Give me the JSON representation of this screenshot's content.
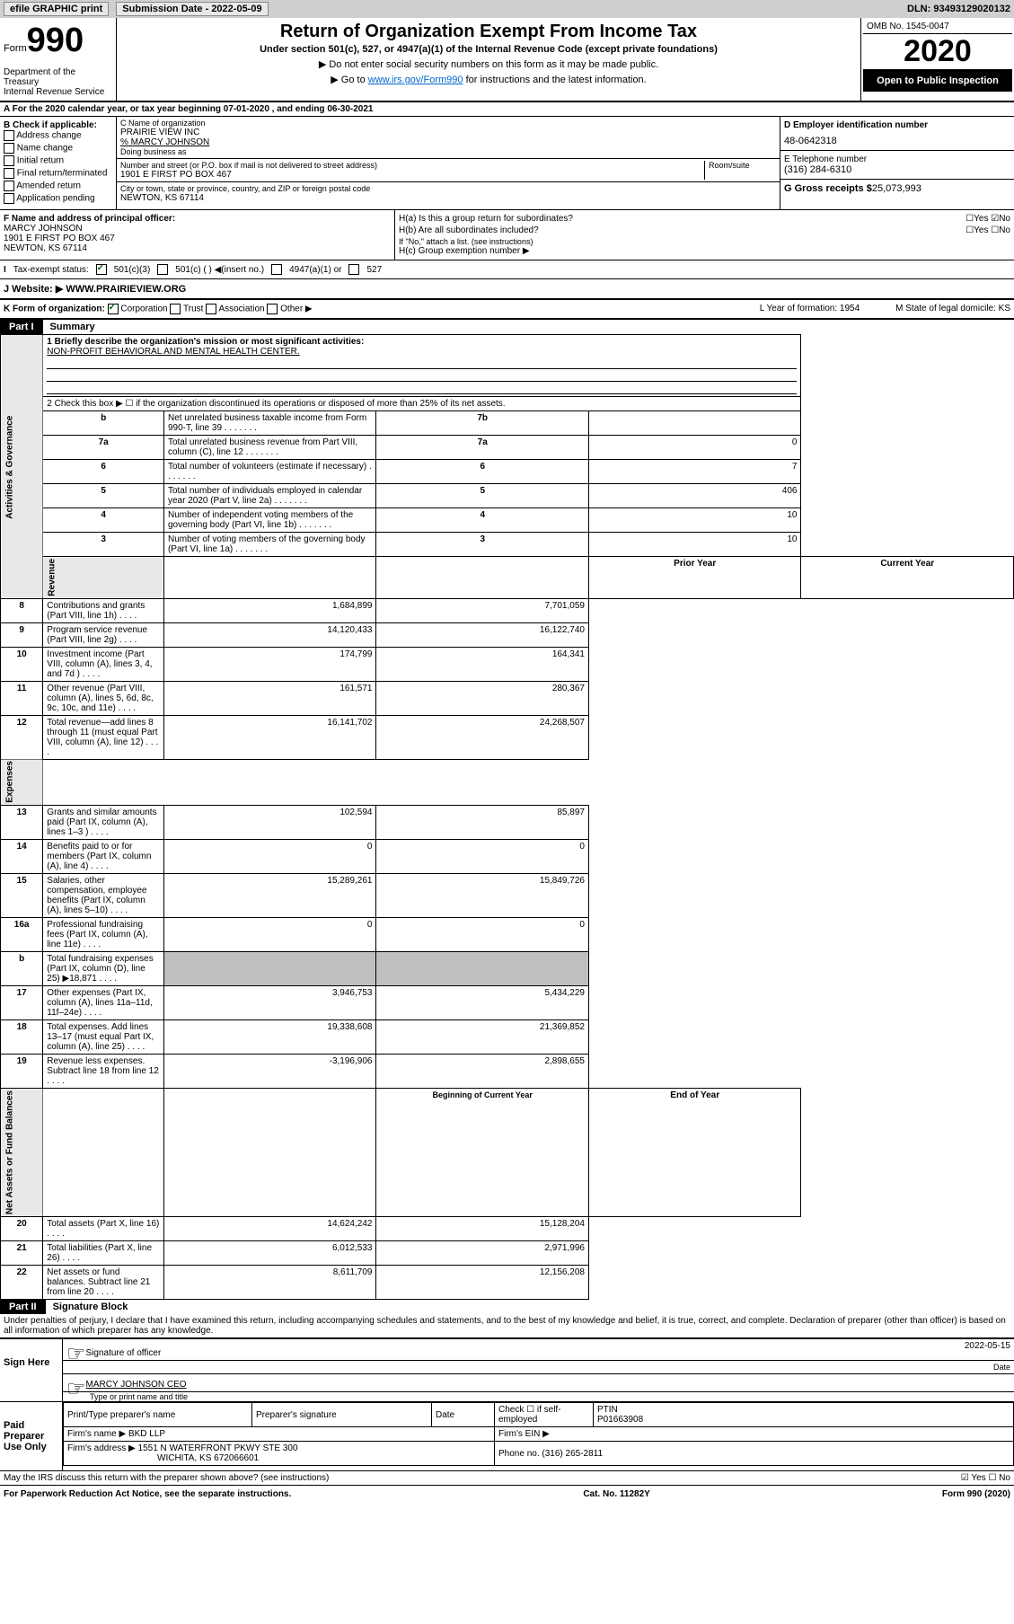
{
  "header": {
    "efile": "efile GRAPHIC print",
    "submission_label": "Submission Date - 2022-05-09",
    "dln": "DLN: 93493129020132"
  },
  "topbox": {
    "form_label": "Form",
    "form_num": "990",
    "title": "Return of Organization Exempt From Income Tax",
    "subtitle": "Under section 501(c), 527, or 4947(a)(1) of the Internal Revenue Code (except private foundations)",
    "note1": "▶ Do not enter social security numbers on this form as it may be made public.",
    "note2_pre": "▶ Go to ",
    "note2_link": "www.irs.gov/Form990",
    "note2_post": " for instructions and the latest information.",
    "dept": "Department of the Treasury\nInternal Revenue Service",
    "omb": "OMB No. 1545-0047",
    "year": "2020",
    "open_public": "Open to Public Inspection"
  },
  "rowA": "A For the 2020 calendar year, or tax year beginning 07-01-2020   , and ending 06-30-2021",
  "colB": {
    "heading": "B Check if applicable:",
    "opts": [
      "Address change",
      "Name change",
      "Initial return",
      "Final return/terminated",
      "Amended return",
      "Application pending"
    ]
  },
  "colC": {
    "name_label": "C Name of organization",
    "name": "PRAIRIE VIEW INC",
    "care_of": "% MARCY JOHNSON",
    "dba_label": "Doing business as",
    "addr_label": "Number and street (or P.O. box if mail is not delivered to street address)",
    "addr": "1901 E FIRST PO BOX 467",
    "room_label": "Room/suite",
    "city_label": "City or town, state or province, country, and ZIP or foreign postal code",
    "city": "NEWTON, KS  67114"
  },
  "colD": {
    "ein_label": "D Employer identification number",
    "ein": "48-0642318",
    "phone_label": "E Telephone number",
    "phone": "(316) 284-6310",
    "gross_label": "G Gross receipts $",
    "gross": "25,073,993"
  },
  "secF": {
    "label": "F  Name and address of principal officer:",
    "name": "MARCY JOHNSON",
    "addr1": "1901 E FIRST PO BOX 467",
    "addr2": "NEWTON, KS  67114"
  },
  "secH": {
    "a": "H(a)  Is this a group return for subordinates?",
    "a_ans": "No",
    "b": "H(b)  Are all subordinates included?",
    "b_note": "If \"No,\" attach a list. (see instructions)",
    "c": "H(c)  Group exemption number ▶"
  },
  "secI": {
    "label": "Tax-exempt status:",
    "opts": [
      "501(c)(3)",
      "501(c) (   ) ◀(insert no.)",
      "4947(a)(1) or",
      "527"
    ]
  },
  "secJ": {
    "label": "J Website: ▶",
    "value": "WWW.PRAIRIEVIEW.ORG"
  },
  "secK": {
    "label": "K Form of organization:",
    "opts": [
      "Corporation",
      "Trust",
      "Association",
      "Other ▶"
    ],
    "L": "L Year of formation: 1954",
    "M": "M State of legal domicile: KS"
  },
  "part1": {
    "tab": "Part I",
    "title": "Summary",
    "line1_label": "1  Briefly describe the organization's mission or most significant activities:",
    "line1_value": "NON-PROFIT BEHAVIORAL AND MENTAL HEALTH CENTER.",
    "line2": "2   Check this box ▶ ☐  if the organization discontinued its operations or disposed of more than 25% of its net assets.",
    "rows_gov": [
      {
        "n": "3",
        "t": "Number of voting members of the governing body (Part VI, line 1a)",
        "lab": "3",
        "v": "10"
      },
      {
        "n": "4",
        "t": "Number of independent voting members of the governing body (Part VI, line 1b)",
        "lab": "4",
        "v": "10"
      },
      {
        "n": "5",
        "t": "Total number of individuals employed in calendar year 2020 (Part V, line 2a)",
        "lab": "5",
        "v": "406"
      },
      {
        "n": "6",
        "t": "Total number of volunteers (estimate if necessary)",
        "lab": "6",
        "v": "7"
      },
      {
        "n": "7a",
        "t": "Total unrelated business revenue from Part VIII, column (C), line 12",
        "lab": "7a",
        "v": "0"
      },
      {
        "n": "b",
        "t": "Net unrelated business taxable income from Form 990-T, line 39",
        "lab": "7b",
        "v": ""
      }
    ],
    "hdr_prior": "Prior Year",
    "hdr_curr": "Current Year",
    "rows_rev": [
      {
        "n": "8",
        "t": "Contributions and grants (Part VIII, line 1h)",
        "p": "1,684,899",
        "c": "7,701,059"
      },
      {
        "n": "9",
        "t": "Program service revenue (Part VIII, line 2g)",
        "p": "14,120,433",
        "c": "16,122,740"
      },
      {
        "n": "10",
        "t": "Investment income (Part VIII, column (A), lines 3, 4, and 7d )",
        "p": "174,799",
        "c": "164,341"
      },
      {
        "n": "11",
        "t": "Other revenue (Part VIII, column (A), lines 5, 6d, 8c, 9c, 10c, and 11e)",
        "p": "161,571",
        "c": "280,367"
      },
      {
        "n": "12",
        "t": "Total revenue—add lines 8 through 11 (must equal Part VIII, column (A), line 12)",
        "p": "16,141,702",
        "c": "24,268,507"
      }
    ],
    "rows_exp": [
      {
        "n": "13",
        "t": "Grants and similar amounts paid (Part IX, column (A), lines 1–3 )",
        "p": "102,594",
        "c": "85,897"
      },
      {
        "n": "14",
        "t": "Benefits paid to or for members (Part IX, column (A), line 4)",
        "p": "0",
        "c": "0"
      },
      {
        "n": "15",
        "t": "Salaries, other compensation, employee benefits (Part IX, column (A), lines 5–10)",
        "p": "15,289,261",
        "c": "15,849,726"
      },
      {
        "n": "16a",
        "t": "Professional fundraising fees (Part IX, column (A), line 11e)",
        "p": "0",
        "c": "0"
      },
      {
        "n": "b",
        "t": "Total fundraising expenses (Part IX, column (D), line 25) ▶18,871",
        "p": "GRAY",
        "c": "GRAY"
      },
      {
        "n": "17",
        "t": "Other expenses (Part IX, column (A), lines 11a–11d, 11f–24e)",
        "p": "3,946,753",
        "c": "5,434,229"
      },
      {
        "n": "18",
        "t": "Total expenses. Add lines 13–17 (must equal Part IX, column (A), line 25)",
        "p": "19,338,608",
        "c": "21,369,852"
      },
      {
        "n": "19",
        "t": "Revenue less expenses. Subtract line 18 from line 12",
        "p": "-3,196,906",
        "c": "2,898,655"
      }
    ],
    "hdr_beg": "Beginning of Current Year",
    "hdr_end": "End of Year",
    "rows_net": [
      {
        "n": "20",
        "t": "Total assets (Part X, line 16)",
        "p": "14,624,242",
        "c": "15,128,204"
      },
      {
        "n": "21",
        "t": "Total liabilities (Part X, line 26)",
        "p": "6,012,533",
        "c": "2,971,996"
      },
      {
        "n": "22",
        "t": "Net assets or fund balances. Subtract line 21 from line 20",
        "p": "8,611,709",
        "c": "12,156,208"
      }
    ],
    "vtabs": {
      "gov": "Activities & Governance",
      "rev": "Revenue",
      "exp": "Expenses",
      "net": "Net Assets or Fund Balances"
    }
  },
  "part2": {
    "tab": "Part II",
    "title": "Signature Block",
    "penalty": "Under penalties of perjury, I declare that I have examined this return, including accompanying schedules and statements, and to the best of my knowledge and belief, it is true, correct, and complete. Declaration of preparer (other than officer) is based on all information of which preparer has any knowledge.",
    "sign_here": "Sign Here",
    "sig_officer": "Signature of officer",
    "sig_date": "2022-05-15",
    "date_label": "Date",
    "officer_name": "MARCY JOHNSON  CEO",
    "type_label": "Type or print name and title",
    "paid_prep": "Paid Preparer Use Only",
    "prep": {
      "h1": "Print/Type preparer's name",
      "h2": "Preparer's signature",
      "h3": "Date",
      "h4": "Check ☐ if self-employed",
      "h5": "PTIN",
      "ptin": "P01663908",
      "firm_label": "Firm's name  ▶",
      "firm": "BKD LLP",
      "ein_label": "Firm's EIN ▶",
      "addr_label": "Firm's address ▶",
      "addr": "1551 N WATERFRONT PKWY STE 300",
      "city": "WICHITA, KS  672066601",
      "phone_label": "Phone no.",
      "phone": "(316) 265-2811"
    },
    "discuss": "May the IRS discuss this return with the preparer shown above? (see instructions)",
    "discuss_ans": "Yes"
  },
  "footer": {
    "left": "For Paperwork Reduction Act Notice, see the separate instructions.",
    "mid": "Cat. No. 11282Y",
    "right": "Form 990 (2020)"
  }
}
